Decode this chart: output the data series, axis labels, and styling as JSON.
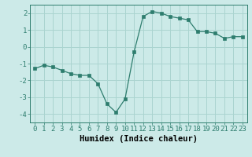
{
  "x": [
    0,
    1,
    2,
    3,
    4,
    5,
    6,
    7,
    8,
    9,
    10,
    11,
    12,
    13,
    14,
    15,
    16,
    17,
    18,
    19,
    20,
    21,
    22,
    23
  ],
  "y": [
    -1.3,
    -1.1,
    -1.2,
    -1.4,
    -1.6,
    -1.7,
    -1.7,
    -2.2,
    -3.4,
    -3.9,
    -3.1,
    -0.3,
    1.8,
    2.1,
    2.0,
    1.8,
    1.7,
    1.6,
    0.9,
    0.9,
    0.8,
    0.5,
    0.6,
    0.6
  ],
  "xlabel": "Humidex (Indice chaleur)",
  "ylim": [
    -4.5,
    2.5
  ],
  "xlim": [
    -0.5,
    23.5
  ],
  "yticks": [
    -4,
    -3,
    -2,
    -1,
    0,
    1,
    2
  ],
  "xticks": [
    0,
    1,
    2,
    3,
    4,
    5,
    6,
    7,
    8,
    9,
    10,
    11,
    12,
    13,
    14,
    15,
    16,
    17,
    18,
    19,
    20,
    21,
    22,
    23
  ],
  "line_color": "#2e7d6e",
  "marker": "s",
  "marker_size": 2.5,
  "bg_color": "#cceae8",
  "grid_color": "#aad4d0",
  "tick_label_fontsize": 6.5,
  "xlabel_fontsize": 7.5,
  "line_width": 0.9
}
